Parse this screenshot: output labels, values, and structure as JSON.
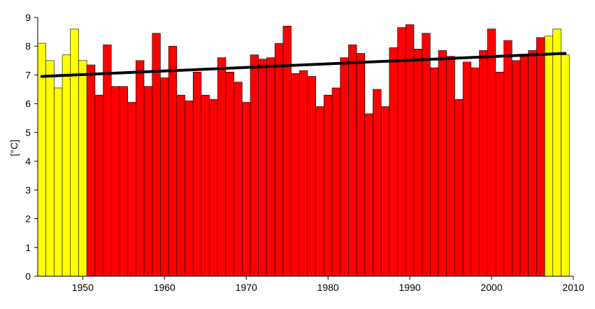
{
  "chart_data": {
    "type": "bar",
    "ylabel": "[°C]",
    "xlabel": "",
    "title": "",
    "ylim": [
      0,
      9
    ],
    "xlim": [
      1944.5,
      2010
    ],
    "grid": false,
    "y_ticks": [
      "0",
      "1",
      "2",
      "3",
      "4",
      "5",
      "6",
      "7",
      "8",
      "9"
    ],
    "x_ticks": [
      "1950",
      "1960",
      "1970",
      "1980",
      "1990",
      "2000",
      "2010"
    ],
    "colors": {
      "highlight": "#ffff00",
      "main": "#ff0000",
      "trend": "#000000",
      "bar_edge": "#000000"
    },
    "years": [
      1945,
      1946,
      1947,
      1948,
      1949,
      1950,
      1951,
      1952,
      1953,
      1954,
      1955,
      1956,
      1957,
      1958,
      1959,
      1960,
      1961,
      1962,
      1963,
      1964,
      1965,
      1966,
      1967,
      1968,
      1969,
      1970,
      1971,
      1972,
      1973,
      1974,
      1975,
      1976,
      1977,
      1978,
      1979,
      1980,
      1981,
      1982,
      1983,
      1984,
      1985,
      1986,
      1987,
      1988,
      1989,
      1990,
      1991,
      1992,
      1993,
      1994,
      1995,
      1996,
      1997,
      1998,
      1999,
      2000,
      2001,
      2002,
      2003,
      2004,
      2005,
      2006,
      2007,
      2008,
      2009
    ],
    "values": [
      8.1,
      7.5,
      6.55,
      7.7,
      8.6,
      7.5,
      7.35,
      6.3,
      8.05,
      6.6,
      6.6,
      6.05,
      7.5,
      6.6,
      8.45,
      6.9,
      8.0,
      6.3,
      6.1,
      7.1,
      6.3,
      6.15,
      7.6,
      7.1,
      6.75,
      6.05,
      7.7,
      7.55,
      7.6,
      8.1,
      8.7,
      7.05,
      7.15,
      6.95,
      5.9,
      6.3,
      6.55,
      7.6,
      8.05,
      7.75,
      5.65,
      6.5,
      5.9,
      7.95,
      8.65,
      8.75,
      7.9,
      8.45,
      7.25,
      7.85,
      7.65,
      6.15,
      7.45,
      7.25,
      7.85,
      8.6,
      7.1,
      8.2,
      7.5,
      7.65,
      7.85,
      8.3,
      8.35,
      8.6,
      7.7
    ],
    "highlighted_years": [
      1945,
      1946,
      1947,
      1948,
      1949,
      1950,
      2007,
      2008,
      2009
    ],
    "trend": {
      "x": [
        1945,
        2009
      ],
      "y": [
        6.95,
        7.75
      ]
    }
  }
}
